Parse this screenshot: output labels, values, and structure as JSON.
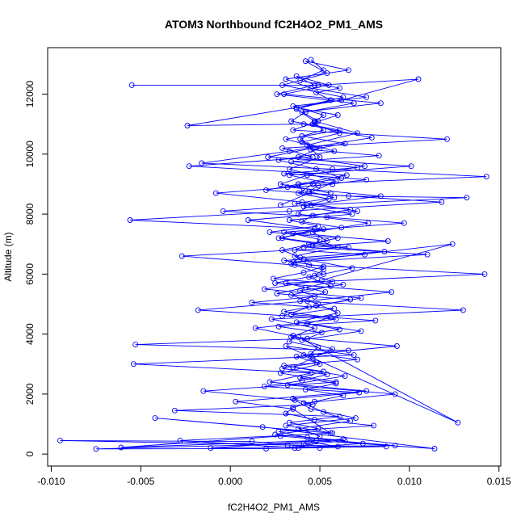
{
  "chart_data": {
    "type": "line",
    "title": "ATOM3 Northbound fC2H4O2_PM1_AMS",
    "xlabel": "fC2H4O2_PM1_AMS",
    "ylabel": "Altitude (m)",
    "xlim": [
      -0.0102,
      0.0151
    ],
    "ylim": [
      -400,
      13550
    ],
    "xticks": [
      -0.01,
      -0.005,
      0.0,
      0.005,
      0.01,
      0.015
    ],
    "xtick_labels": [
      "-0.010",
      "-0.005",
      "0.000",
      "0.005",
      "0.010",
      "0.015"
    ],
    "yticks": [
      0,
      2000,
      4000,
      6000,
      8000,
      10000,
      12000
    ],
    "ytick_labels": [
      "0",
      "2000",
      "4000",
      "6000",
      "8000",
      "10000",
      "12000"
    ],
    "grid": false,
    "legend": "none",
    "marker": "open-circle",
    "series_color": "#0000FF",
    "series": [
      {
        "x": [
          0.0045,
          0.0052,
          0.0039,
          0.0061,
          0.0048,
          0.0056,
          0.0037,
          0.006,
          0.0047,
          0.0052,
          0.004,
          0.0064,
          0.0045,
          0.0083,
          0.0034,
          0.0071,
          0.003,
          0.0076,
          0.0049,
          0.0044,
          0.0058,
          0.0036,
          0.0067,
          0.0046,
          0.004,
          0.0062,
          0.0035,
          0.005,
          0.0046,
          0.0086,
          0.0039,
          0.0034,
          0.0052,
          0.0047,
          0.0057,
          0.0042,
          0.0026,
          0.0067,
          0.0048,
          0.003,
          0.0056,
          0.0043,
          0.0061,
          0.0035,
          0.0033,
          0.0049,
          0.0045,
          0.0071,
          0.003,
          0.0052,
          0.0039,
          0.0059,
          0.0042,
          0.0063,
          0.0047,
          0.0035,
          0.0031,
          0.0047,
          0.008,
          0.0027,
          0.0043,
          0.0074,
          0.0036,
          0.006,
          0.0045,
          0.005,
          0.0038,
          0.0067,
          0.0052,
          0.0041,
          0.0092,
          0.0032,
          0.0064,
          0.0035,
          0.0046,
          0.0057,
          0.004,
          0.0073,
          0.0037,
          0.006,
          0.0049,
          0.0034,
          0.0056,
          0.0044,
          0.0068,
          0.0041,
          0.0029,
          0.0054,
          0.0046,
          0.0077,
          0.0038,
          0.0043,
          0.0084,
          0.0032,
          0.0062,
          0.0048,
          0.0027,
          0.0058,
          0.004,
          0.0061,
          0.0046,
          0.0052,
          0.0035,
          0.0076,
          0.0045,
          0.0031,
          0.0066,
          0.0042,
          0.0054,
          0.0029,
          0.0063,
          0.0037,
          0.0047,
          0.0071,
          0.0043,
          0.005,
          0.0033,
          0.0059,
          0.0044,
          0.0028
        ],
        "y": [
          13150,
          12800,
          12450,
          12200,
          12050,
          11800,
          11550,
          11300,
          11050,
          10800,
          10600,
          10350,
          10150,
          9950,
          9750,
          9550,
          9350,
          9150,
          8950,
          8750,
          8550,
          8350,
          8150,
          7950,
          7750,
          7550,
          7350,
          7150,
          6950,
          6750,
          6550,
          6350,
          6150,
          5950,
          5750,
          5550,
          5350,
          5150,
          4950,
          4750,
          4550,
          4350,
          4150,
          3950,
          3750,
          3550,
          3350,
          3150,
          2950,
          2750,
          2550,
          2350,
          2150,
          1950,
          1750,
          1550,
          1350,
          1150,
          950,
          750,
          550,
          350,
          200,
          250,
          400,
          600,
          850,
          1100,
          1400,
          1700,
          2000,
          2300,
          2600,
          2900,
          3200,
          3500,
          3800,
          4100,
          4400,
          4700,
          5000,
          5300,
          5600,
          5900,
          6200,
          6500,
          6800,
          7100,
          7400,
          7700,
          8000,
          8300,
          8600,
          8900,
          9200,
          9500,
          9800,
          10100,
          10400,
          10700,
          11000,
          11300,
          11600,
          11900,
          12200,
          12500,
          12800,
          13100,
          12700,
          12300,
          11900,
          11500,
          11100,
          10700,
          10300,
          9900,
          9500,
          9100,
          8700,
          8300
        ]
      },
      {
        "x": [
          0.0046,
          0.0038,
          0.0055,
          0.0041,
          0.0068,
          0.0033,
          0.0049,
          0.0022,
          0.006,
          0.0044,
          0.0036,
          0.0075,
          0.003,
          0.0052,
          0.0041,
          0.0024,
          0.0063,
          0.0039,
          0.0047,
          0.0012,
          0.0058,
          0.0034,
          0.0081,
          0.0027,
          0.0051,
          0.0043,
          -0.0053,
          0.0066,
          0.0037,
          0.0048,
          0.0029,
          0.0054,
          0.004,
          0.0019,
          0.0072,
          0.0035,
          0.0046,
          -0.0031,
          0.0061,
          0.0033,
          0.0049,
          0.0025,
          0.0064,
          0.0042,
          0.0038,
          -0.0028,
          0.0057,
          0.0031,
          0.007,
          0.0045,
          0.0036,
          -0.0015,
          0.0059,
          0.0028,
          0.005,
          0.0041,
          0.0093,
          0.0034,
          0.0047,
          0.0023,
          0.013,
          0.0039,
          0.0053,
          0.0031,
          0.0142,
          0.0044,
          0.0036,
          0.006,
          0.0027,
          0.0052,
          -0.0056,
          0.0033,
          0.0118,
          0.0041,
          0.0038,
          0.0065,
          -0.0023,
          0.0046,
          0.0029,
          0.0121,
          0.0035,
          0.0049,
          0.004,
          0.0084,
          0.003,
          0.0055,
          0.0037,
          0.0047,
          0.0026,
          0.0069,
          0.0042,
          0.0034,
          0.0061,
          0.0031,
          0.005,
          0.0038,
          0.0075,
          0.0043,
          0.0028,
          0.0056
        ],
        "y": [
          9000,
          8700,
          8500,
          8250,
          8000,
          7800,
          7600,
          7400,
          7200,
          7000,
          6800,
          6650,
          6450,
          6250,
          6050,
          5850,
          5650,
          5450,
          5250,
          5050,
          4850,
          4650,
          4450,
          4250,
          4050,
          3850,
          3650,
          3450,
          3250,
          3050,
          2850,
          2650,
          2450,
          2250,
          2050,
          1850,
          1650,
          1450,
          1250,
          1050,
          850,
          650,
          450,
          300,
          200,
          450,
          700,
          950,
          1200,
          1500,
          1800,
          2100,
          2400,
          2700,
          3000,
          3300,
          3600,
          3900,
          4200,
          4500,
          4800,
          5100,
          5400,
          5700,
          6000,
          6300,
          6600,
          6900,
          7200,
          7500,
          7800,
          8100,
          8400,
          8700,
          9000,
          9300,
          9600,
          9900,
          10200,
          10500,
          10800,
          11100,
          11400,
          11700,
          12000,
          12300,
          12600,
          12300,
          12000,
          11700,
          11400,
          11100,
          10800,
          10500,
          10200,
          9900,
          9600,
          9300,
          9000,
          8700
        ]
      },
      {
        "x": [
          0.005,
          0.0012,
          -0.0095,
          0.0032,
          0.0087,
          0.002,
          -0.0075,
          0.0041,
          0.0063,
          -0.0011,
          0.0092,
          0.0028,
          -0.0061,
          0.0048,
          0.0114,
          0.0018,
          -0.0042,
          0.0056,
          0.0035,
          0.0003,
          0.0076,
          0.0022,
          0.0045,
          -0.0054,
          0.0069,
          0.0031,
          0.0127,
          0.0038,
          0.0014,
          0.0059,
          -0.0018,
          0.0043,
          0.009,
          0.0025,
          0.0052,
          0.0036,
          -0.0027,
          0.0066,
          0.0029,
          0.0047,
          0.001,
          0.0071,
          0.004,
          -0.0008,
          0.0057,
          0.0033,
          0.0101,
          0.0021,
          0.0046,
          0.0039
        ],
        "y": [
          200,
          420,
          450,
          300,
          250,
          180,
          170,
          350,
          500,
          200,
          280,
          600,
          220,
          450,
          180,
          900,
          1200,
          700,
          1500,
          1750,
          2100,
          2400,
          2700,
          3000,
          3300,
          3600,
          1050,
          3900,
          4200,
          4500,
          4800,
          5100,
          5400,
          5700,
          6000,
          6300,
          6600,
          6900,
          7200,
          7500,
          7800,
          8100,
          8400,
          8700,
          9000,
          9300,
          9600,
          9900,
          10200,
          10500
        ]
      },
      {
        "x": [
          -0.0055,
          0.0049,
          0.0105,
          0.0062,
          -0.0024,
          0.0041,
          0.0079,
          0.0033,
          -0.0016,
          0.0057,
          0.0143,
          0.0038,
          0.002,
          0.0066,
          0.0132,
          0.0045,
          -0.0004,
          0.0054,
          0.0097,
          0.003,
          0.0088,
          0.0041,
          0.011,
          0.0035,
          0.0124,
          0.0051,
          0.0019,
          0.0073,
          0.0044,
          0.0029
        ],
        "y": [
          12300,
          12300,
          12500,
          11800,
          10950,
          11000,
          10550,
          10100,
          9700,
          9500,
          9250,
          9000,
          8800,
          8600,
          8550,
          8300,
          8100,
          7900,
          7700,
          7400,
          7100,
          6900,
          6650,
          6400,
          7000,
          5800,
          5500,
          5200,
          4900,
          4600
        ]
      }
    ]
  }
}
